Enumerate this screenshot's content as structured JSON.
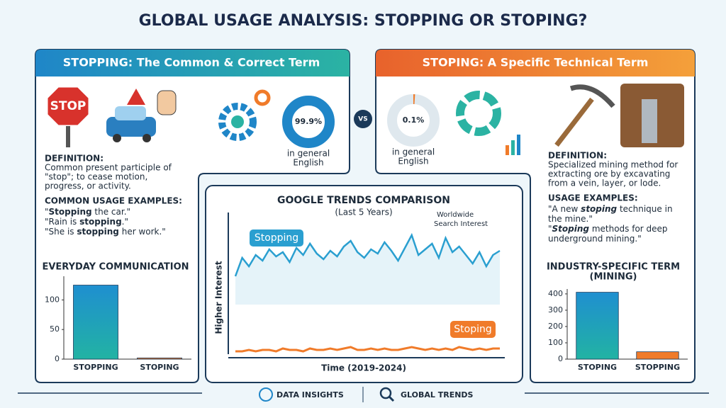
{
  "title": "GLOBAL USAGE ANALYSIS: STOPPING OR STOPING?",
  "left_panel": {
    "heading": "STOPPING: The Common & Correct Term",
    "stop_sign": "STOP",
    "definition_label": "DEFINITION:",
    "definition": [
      "Common present participle of",
      "\"stop\"; to cease motion,",
      "progress, or activity."
    ],
    "examples_label": "COMMON USAGE EXAMPLES:",
    "examples": [
      [
        "\"",
        "Stopping",
        " the car.\""
      ],
      [
        "\"Rain is ",
        "stopping",
        ".\""
      ],
      [
        "\"She is ",
        "stopping",
        " her work.\""
      ]
    ]
  },
  "vs": "VS",
  "right_panel": {
    "heading": "STOPING: A Specific Technical Term",
    "definition_label": "DEFINITION:",
    "definition": [
      "Specialized mining method for",
      "extracting ore by excavating",
      "from a vein, layer, or lode."
    ],
    "examples_label": "USAGE EXAMPLES:",
    "examples": [
      [
        "\"A new ",
        "stoping",
        " technique in"
      ],
      [
        "the mine.\""
      ],
      [
        "\"",
        "Stoping",
        " methods for deep"
      ],
      [
        "underground mining.\""
      ]
    ]
  },
  "footer": [
    "DATA INSIGHTS",
    "GLOBAL TRENDS"
  ],
  "chart_data": [
    {
      "type": "donut",
      "values": [
        99.9
      ],
      "value_labels": [
        "99.9%"
      ],
      "ylim": [
        0,
        100
      ],
      "color": "#1f86c8",
      "caption": [
        "in general",
        "English"
      ]
    },
    {
      "type": "donut",
      "values": [
        0.1
      ],
      "value_labels": [
        "0.1%"
      ],
      "ylim": [
        0,
        100
      ],
      "color": "#f07b2a",
      "caption": [
        "in general",
        "English"
      ]
    },
    {
      "type": "bar",
      "title": [
        "EVERYDAY COMMUNICATION"
      ],
      "categories": [
        "STOPPING",
        "STOPING"
      ],
      "values": [
        125,
        2
      ],
      "colors": [
        "#1f8fd0",
        "#f07b2a"
      ],
      "ylim": [
        0,
        140
      ],
      "yticks": [
        0,
        50,
        100
      ]
    },
    {
      "type": "bar",
      "title": [
        "INDUSTRY-SPECIFIC TERM",
        "(MINING)"
      ],
      "categories": [
        "STOPING",
        "STOPPING"
      ],
      "values": [
        410,
        45
      ],
      "colors": [
        "#1fa9a0",
        "#f07b2a"
      ],
      "ylim": [
        0,
        430
      ],
      "yticks": [
        0,
        100,
        200,
        300,
        400
      ]
    },
    {
      "type": "line",
      "title": "GOOGLE TRENDS COMPARISON",
      "subtitle": "(Last 5 Years)",
      "y_label": "Higher Interest",
      "x_label": "Time (2019-2024)",
      "annotation": [
        "Worldwide",
        "Search Interest"
      ],
      "ylim": [
        0,
        100
      ],
      "series": [
        {
          "name": "Stopping",
          "color": "#2a9fd0",
          "values": [
            55,
            68,
            62,
            70,
            66,
            74,
            69,
            72,
            65,
            75,
            70,
            78,
            71,
            67,
            73,
            69,
            76,
            80,
            72,
            68,
            74,
            71,
            79,
            73,
            66,
            75,
            84,
            70,
            74,
            78,
            68,
            82,
            72,
            76,
            70,
            64,
            72,
            62,
            70,
            73
          ]
        },
        {
          "name": "Stoping",
          "color": "#f07b2a",
          "values": [
            2,
            2,
            3,
            2,
            3,
            3,
            2,
            4,
            3,
            3,
            2,
            4,
            3,
            3,
            4,
            3,
            4,
            5,
            3,
            3,
            4,
            3,
            4,
            3,
            3,
            4,
            5,
            4,
            3,
            4,
            3,
            4,
            3,
            5,
            4,
            3,
            4,
            3,
            4,
            4
          ]
        }
      ]
    }
  ]
}
